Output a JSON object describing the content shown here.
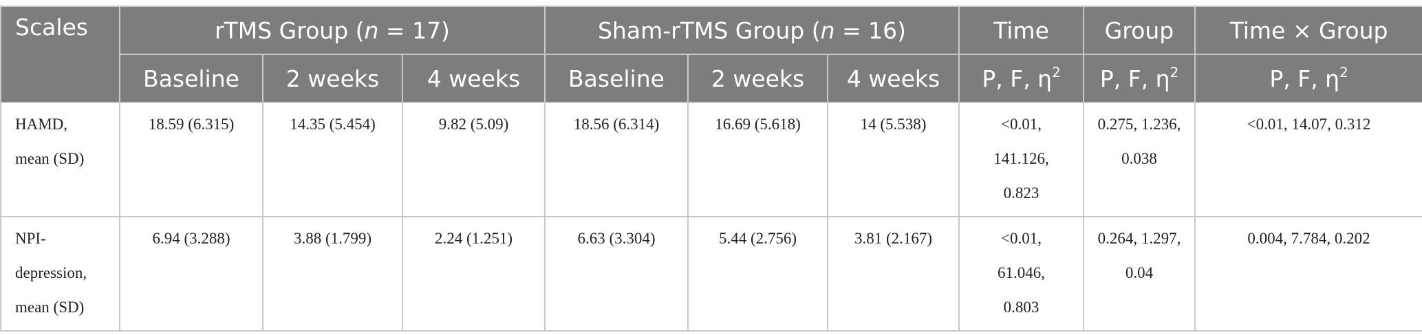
{
  "header": {
    "scales": "Scales",
    "rtms_group_prefix": "rTMS Group (",
    "rtms_group_n": "n",
    "rtms_group_suffix": " = 17)",
    "sham_group_prefix": "Sham-rTMS Group (",
    "sham_group_n": "n",
    "sham_group_suffix": " = 16)",
    "time": "Time",
    "group": "Group",
    "time_x_group": "Time × Group",
    "sub": {
      "baseline": "Baseline",
      "two_weeks": "2 weeks",
      "four_weeks": "4 weeks",
      "stat_prefix": "P, F, η",
      "stat_sup": "2"
    }
  },
  "rows": [
    {
      "label_line1": "HAMD,",
      "label_line2": "mean (SD)",
      "rtms_baseline": "18.59 (6.315)",
      "rtms_2w": "14.35 (5.454)",
      "rtms_4w": "9.82 (5.09)",
      "sham_baseline": "18.56 (6.314)",
      "sham_2w": "16.69 (5.618)",
      "sham_4w": "14 (5.538)",
      "time_line1": "<0.01,",
      "time_line2": "141.126,",
      "time_line3": "0.823",
      "group_line1": "0.275, 1.236,",
      "group_line2": "0.038",
      "interaction": "<0.01, 14.07, 0.312"
    },
    {
      "label_line1": "NPI-",
      "label_line2": "depression,",
      "label_line3": "mean (SD)",
      "rtms_baseline": "6.94 (3.288)",
      "rtms_2w": "3.88 (1.799)",
      "rtms_4w": "2.24 (1.251)",
      "sham_baseline": "6.63 (3.304)",
      "sham_2w": "5.44 (2.756)",
      "sham_4w": "3.81 (2.167)",
      "time_line1": "<0.01,",
      "time_line2": "61.046,",
      "time_line3": "0.803",
      "group_line1": "0.264, 1.297,",
      "group_line2": "0.04",
      "interaction": "0.004, 7.784, 0.202"
    }
  ]
}
